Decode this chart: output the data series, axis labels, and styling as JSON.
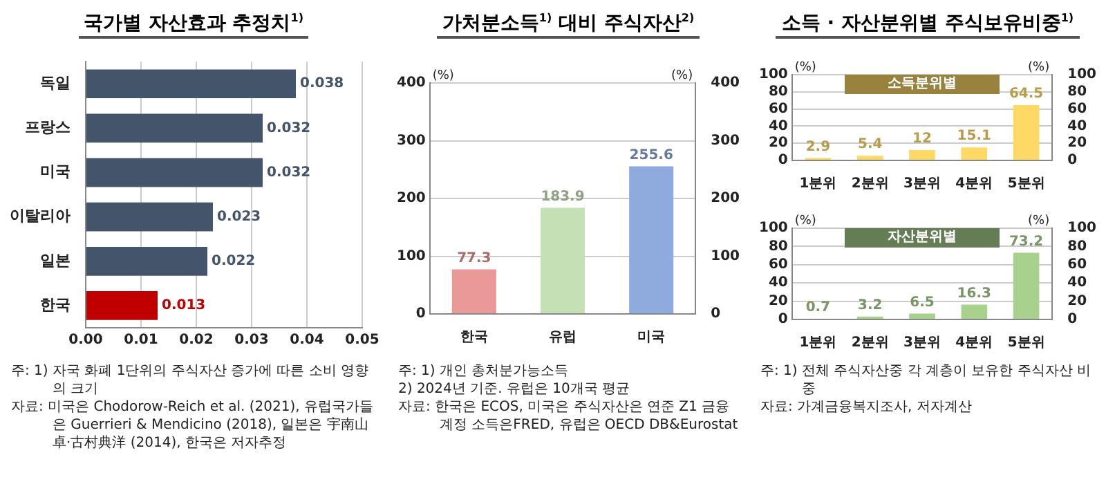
{
  "chart_data": [
    {
      "type": "bar",
      "orientation": "horizontal",
      "title": "국가별 자산효과 추정치$^{1)}$",
      "categories": [
        "독일",
        "프랑스",
        "미국",
        "이탈리아",
        "일본",
        "한국"
      ],
      "values": [
        0.038,
        0.032,
        0.032,
        0.023,
        0.022,
        0.013
      ],
      "colors": [
        "#44546a",
        "#44546a",
        "#44546a",
        "#44546a",
        "#44546a",
        "#c00000"
      ],
      "xlim": [
        0,
        0.05
      ],
      "xticks": [
        {
          "value": 0,
          "label": "0.00"
        },
        {
          "value": 0.01,
          "label": "0.01"
        },
        {
          "value": 0.02,
          "label": "0.02"
        },
        {
          "value": 0.03,
          "label": "0.03"
        },
        {
          "value": 0.04,
          "label": "0.04"
        },
        {
          "value": 0.05,
          "label": "0.05"
        }
      ],
      "grid": "x",
      "data_labels": true,
      "annotations": [
        "주: 1) 자국 화폐 1단위의 주식자산 증가에 따른 소비 영향의 크기",
        "자료: 미국은 Chodorow-Reich et al. (2021), 유럽국가들은 Guerrieri & Mendicino (2018), 일본은 宇南山卓·古村典洋 (2014), 한국은 저자추정"
      ]
    },
    {
      "type": "bar",
      "title": "가처분소득$^{1)}$ 대비 주식자산$^{2)}$",
      "ylabel": "(%)",
      "y2label": "(%)",
      "categories": [
        "한국",
        "유럽",
        "미국"
      ],
      "values": [
        77.3,
        183.9,
        255.6
      ],
      "colors": [
        "#ea9999",
        "#c5e0b4",
        "#8faadc"
      ],
      "ylim": [
        0,
        400
      ],
      "yticks": [
        0,
        100,
        200,
        300,
        400
      ],
      "y2lim": [
        0,
        400
      ],
      "y2ticks": [
        0,
        100,
        200,
        300,
        400
      ],
      "grid": "y",
      "data_labels": true,
      "annotations": [
        "주: 1) 개인 총처분가능소득",
        "2) 2024년 기준. 유럽은 10개국 평균",
        "자료: 한국은 ECOS, 미국은 주식자산은 연준 Z1 금융계정 소득은FRED, 유럽은 OECD DB&Eurostat"
      ]
    },
    {
      "type": "bar",
      "title": "소득 · 자산분위별 주식보유비중$^{1)}$",
      "subtitle": "소득분위별",
      "ylabel": "(%)",
      "y2label": "(%)",
      "categories": [
        "1분위",
        "2분위",
        "3분위",
        "4분위",
        "5분위"
      ],
      "values": [
        2.9,
        5.4,
        12,
        15.1,
        64.5
      ],
      "color": "#ffd966",
      "ylim": [
        0,
        100
      ],
      "yticks": [
        0,
        20,
        40,
        60,
        80,
        100
      ],
      "y2lim": [
        0,
        100
      ],
      "y2ticks": [
        0,
        20,
        40,
        60,
        80,
        100
      ],
      "grid": "y",
      "data_labels": true
    },
    {
      "type": "bar",
      "subtitle": "자산분위별",
      "ylabel": "(%)",
      "y2label": "(%)",
      "categories": [
        "1분위",
        "2분위",
        "3분위",
        "4분위",
        "5분위"
      ],
      "values": [
        0.7,
        3.2,
        6.5,
        16.3,
        73.2
      ],
      "color": "#a9d18e",
      "ylim": [
        0,
        100
      ],
      "yticks": [
        0,
        20,
        40,
        60,
        80,
        100
      ],
      "y2lim": [
        0,
        100
      ],
      "y2ticks": [
        0,
        20,
        40,
        60,
        80,
        100
      ],
      "grid": "y",
      "data_labels": true,
      "annotations": [
        "주: 1) 전체 주식자산중 각 계층이 보유한 주식자산 비중",
        "자료: 가계금융복지조사, 저자계산"
      ]
    }
  ]
}
